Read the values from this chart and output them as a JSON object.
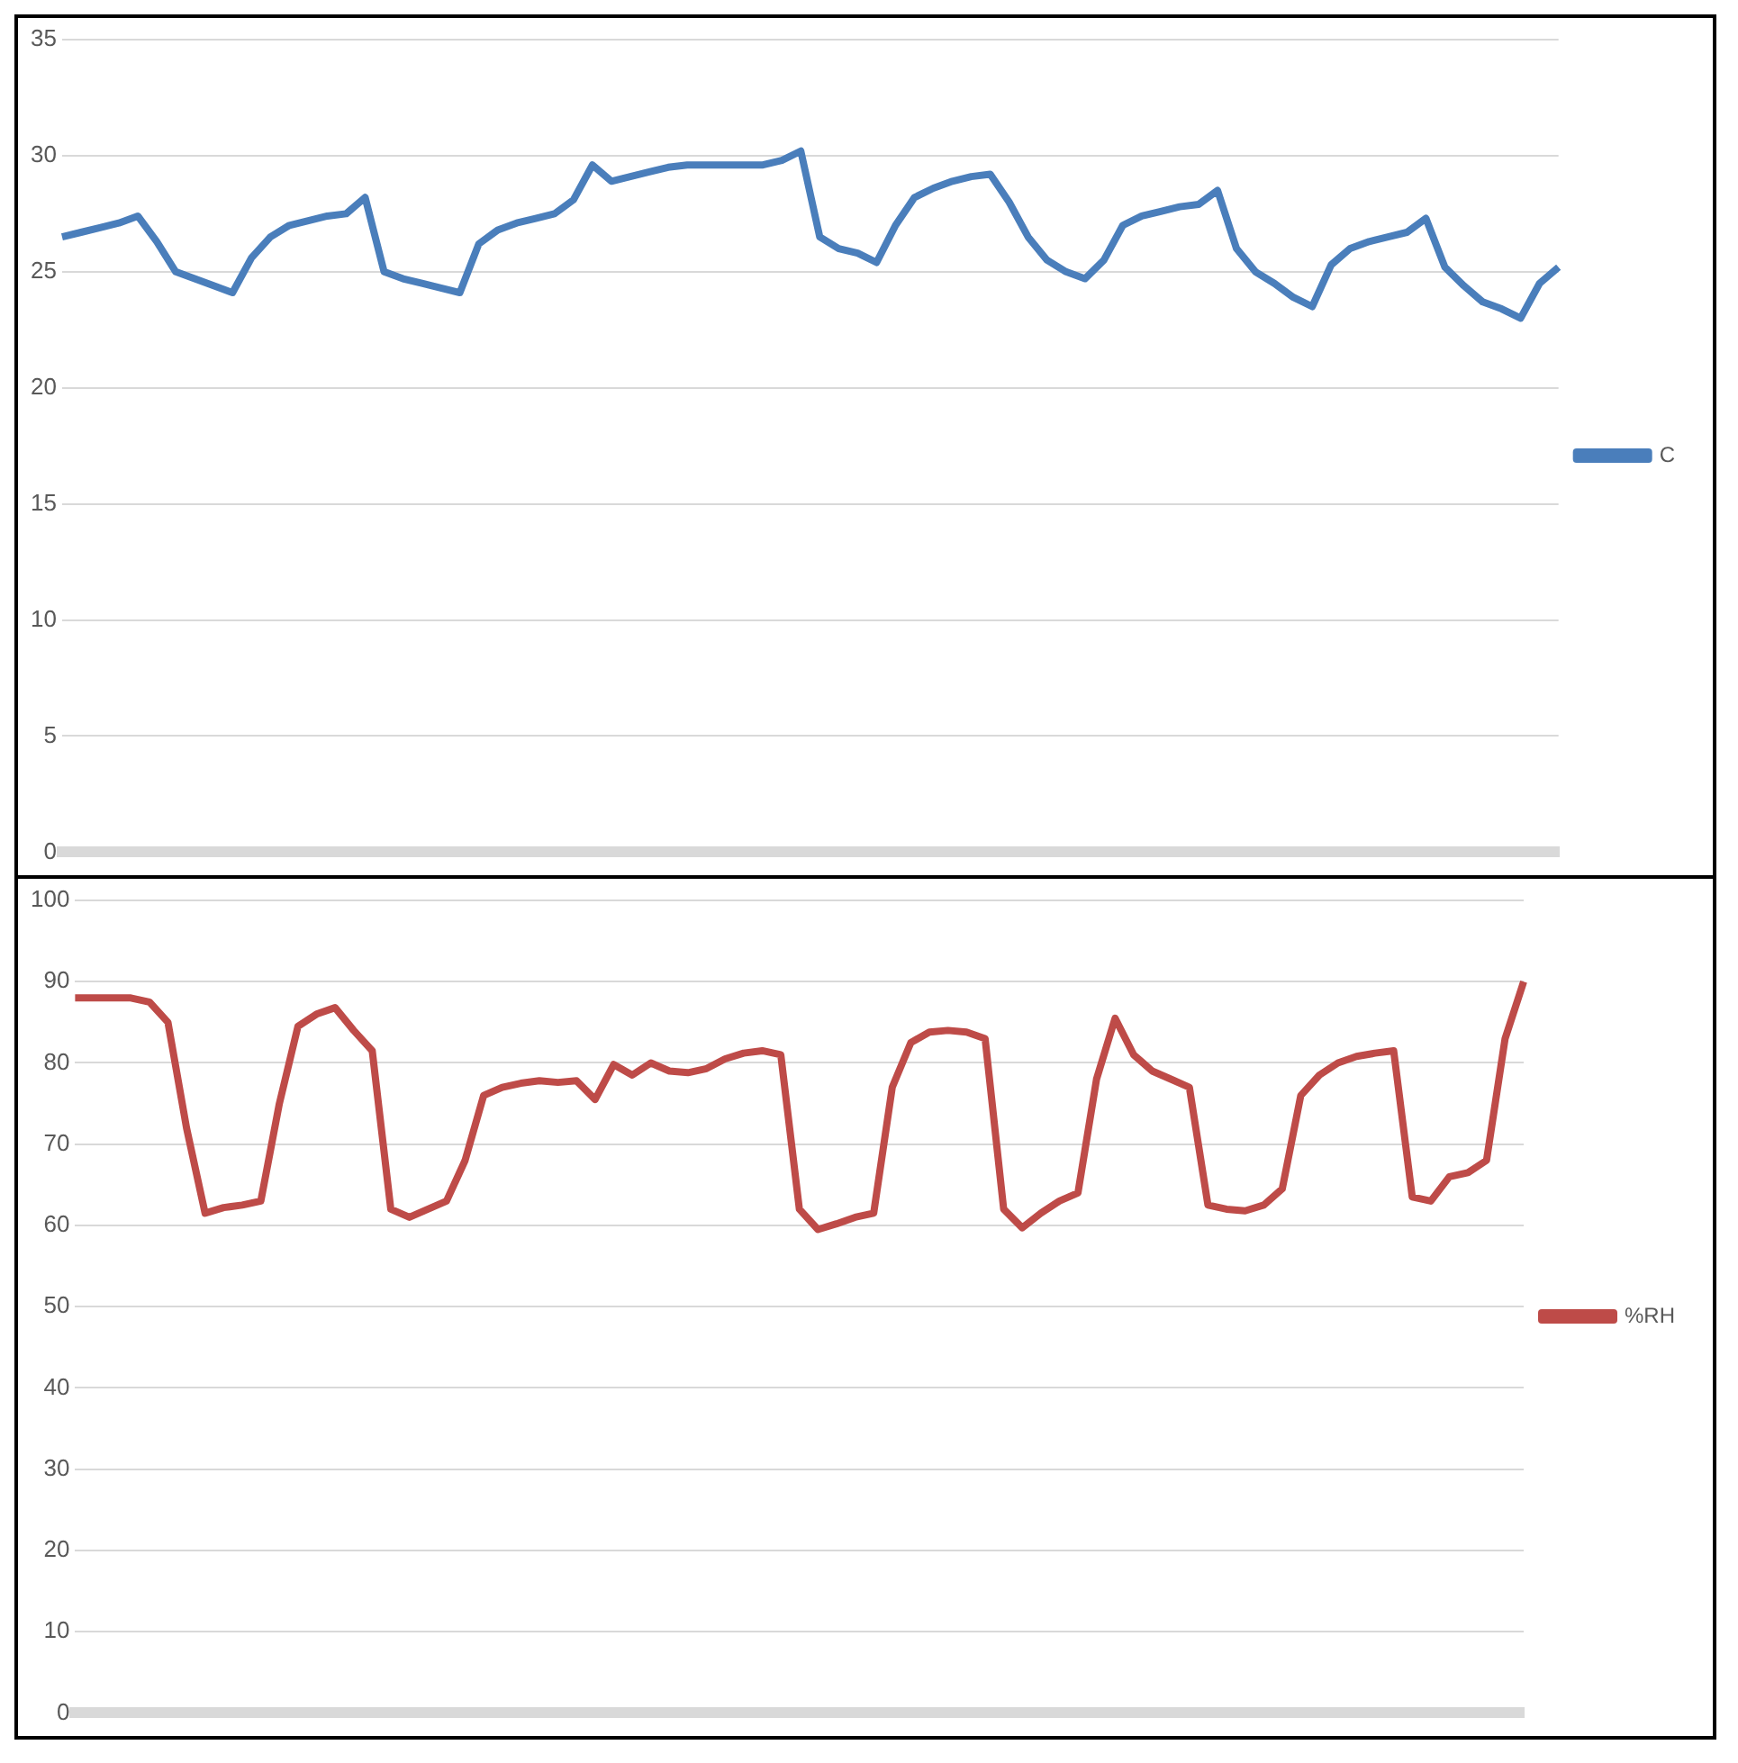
{
  "chart_data": [
    {
      "type": "line",
      "categories": [
        null,
        null,
        null,
        null,
        null,
        null,
        null,
        null,
        null,
        null,
        null,
        null,
        null,
        null,
        null,
        null,
        null,
        null,
        null,
        null,
        null,
        null,
        null,
        null,
        null,
        null,
        null,
        null,
        null,
        null,
        null,
        null,
        null,
        null,
        null,
        null,
        null,
        null,
        null,
        null,
        null,
        null,
        null,
        null,
        null,
        null,
        null,
        null,
        null,
        null,
        null,
        null,
        null,
        null,
        null,
        null,
        null,
        null,
        null,
        null,
        null,
        null,
        null,
        null,
        null,
        null,
        null,
        null,
        null,
        null,
        null,
        null,
        null,
        null,
        null,
        null,
        null,
        null,
        null,
        null
      ],
      "series": [
        {
          "name": "C",
          "color": "#4a7ebb",
          "values": [
            26.5,
            26.7,
            26.9,
            27.1,
            27.4,
            26.3,
            25.0,
            24.7,
            24.4,
            24.1,
            25.6,
            26.5,
            27.0,
            27.2,
            27.4,
            27.5,
            28.2,
            25.0,
            24.7,
            24.5,
            24.3,
            24.1,
            26.2,
            26.8,
            27.1,
            27.3,
            27.5,
            28.1,
            29.6,
            28.9,
            29.1,
            29.3,
            29.5,
            29.6,
            29.6,
            29.6,
            29.6,
            29.6,
            29.8,
            30.2,
            26.5,
            26.0,
            25.8,
            25.4,
            27.0,
            28.2,
            28.6,
            28.9,
            29.1,
            29.2,
            28.0,
            26.5,
            25.5,
            25.0,
            24.7,
            25.5,
            27.0,
            27.4,
            27.6,
            27.8,
            27.9,
            28.5,
            26.0,
            25.0,
            24.5,
            23.9,
            23.5,
            25.3,
            26.0,
            26.3,
            26.5,
            26.7,
            27.3,
            25.2,
            24.4,
            23.7,
            23.4,
            23.0,
            24.5,
            25.2
          ]
        }
      ],
      "ylim": [
        0,
        35
      ],
      "yticks": [
        0,
        5,
        10,
        15,
        20,
        25,
        30,
        35
      ],
      "grid": "y",
      "legend": "right",
      "tick_labels": "y",
      "marker": "none"
    },
    {
      "type": "line",
      "categories": [
        null,
        null,
        null,
        null,
        null,
        null,
        null,
        null,
        null,
        null,
        null,
        null,
        null,
        null,
        null,
        null,
        null,
        null,
        null,
        null,
        null,
        null,
        null,
        null,
        null,
        null,
        null,
        null,
        null,
        null,
        null,
        null,
        null,
        null,
        null,
        null,
        null,
        null,
        null,
        null,
        null,
        null,
        null,
        null,
        null,
        null,
        null,
        null,
        null,
        null,
        null,
        null,
        null,
        null,
        null,
        null,
        null,
        null,
        null,
        null,
        null,
        null,
        null,
        null,
        null,
        null,
        null,
        null,
        null,
        null,
        null,
        null,
        null,
        null,
        null,
        null,
        null,
        null,
        null
      ],
      "series": [
        {
          "name": "%RH",
          "color": "#be4b48",
          "values": [
            88,
            88,
            88,
            88,
            87.5,
            85,
            72,
            61.5,
            62.2,
            62.5,
            63,
            75,
            84.5,
            86,
            86.8,
            84,
            81.5,
            62,
            61,
            62,
            63,
            68,
            76,
            77,
            77.5,
            77.8,
            77.6,
            77.8,
            75.5,
            79.8,
            78.5,
            80,
            79,
            78.8,
            79.3,
            80.5,
            81.2,
            81.5,
            81,
            62,
            59.5,
            60.2,
            61,
            61.5,
            77,
            82.5,
            83.8,
            84,
            83.8,
            83,
            62,
            59.7,
            61.5,
            63,
            64,
            78,
            85.5,
            81,
            79,
            78,
            77,
            62.5,
            62,
            61.8,
            62.5,
            64.5,
            76,
            78.5,
            80,
            80.8,
            81.2,
            81.5,
            63.5,
            63,
            66,
            66.5,
            68,
            83,
            90
          ]
        }
      ],
      "ylim": [
        0,
        100
      ],
      "yticks": [
        0,
        10,
        20,
        30,
        40,
        50,
        60,
        70,
        80,
        90,
        100
      ],
      "grid": "y",
      "legend": "right",
      "tick_labels": "y",
      "marker": "none"
    }
  ]
}
